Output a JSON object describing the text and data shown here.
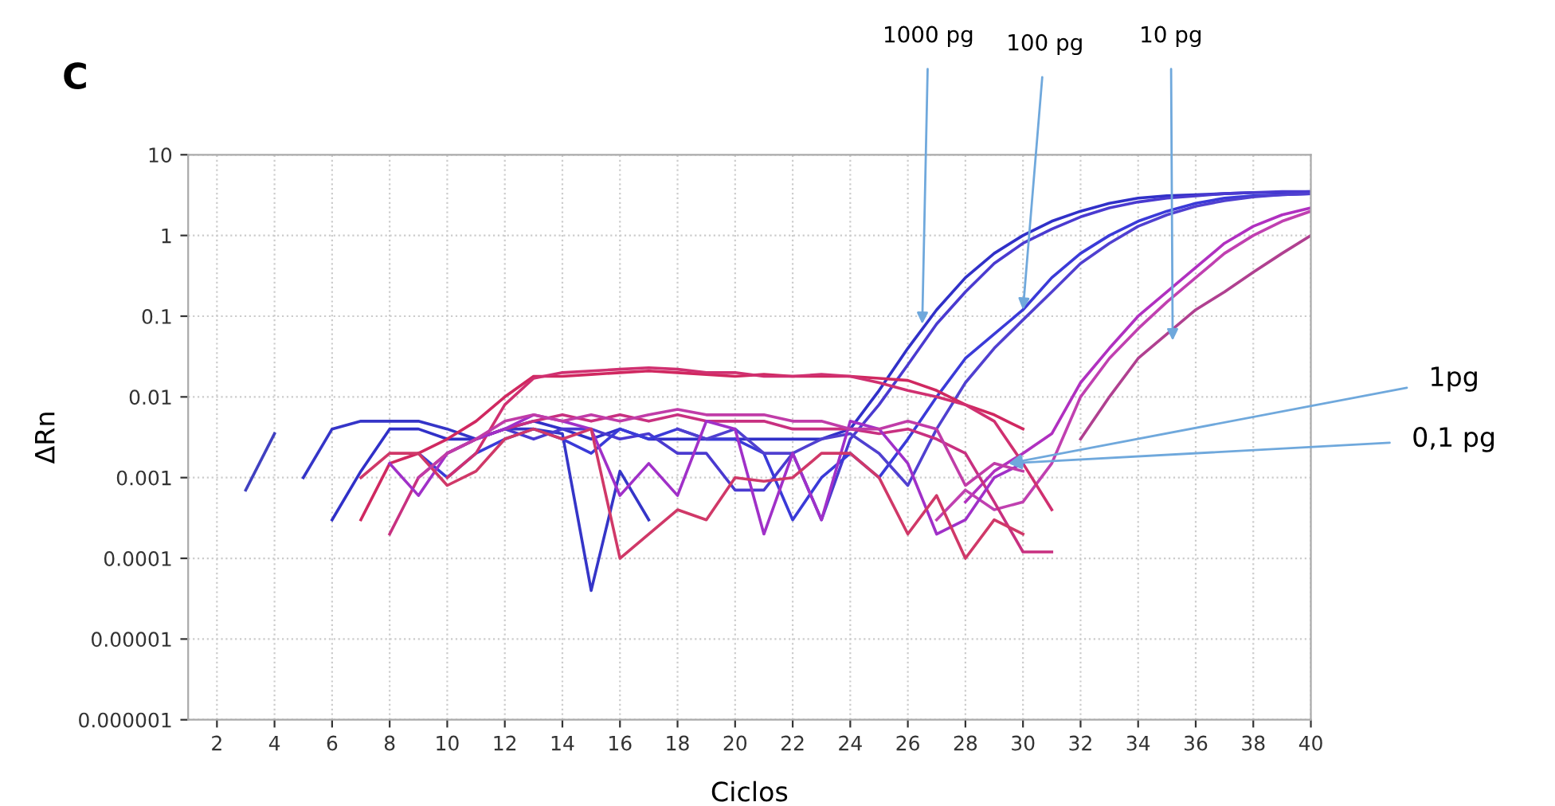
{
  "chart_data": {
    "type": "line",
    "xlabel": "Ciclos",
    "ylabel": "ΔRn",
    "log": "y",
    "grid": true,
    "xlim": [
      1,
      40
    ],
    "xticks": [
      2,
      4,
      6,
      8,
      10,
      12,
      14,
      16,
      18,
      20,
      22,
      24,
      26,
      28,
      30,
      32,
      34,
      36,
      38,
      40
    ],
    "ylim": [
      1e-06,
      10
    ],
    "yticks": [
      {
        "value": 1e-06,
        "label": "0.000001"
      },
      {
        "value": 1e-05,
        "label": "0.00001"
      },
      {
        "value": 0.0001,
        "label": "0.0001"
      },
      {
        "value": 0.001,
        "label": "0.001"
      },
      {
        "value": 0.01,
        "label": "0.01"
      },
      {
        "value": 0.1,
        "label": "0.1"
      },
      {
        "value": 1,
        "label": "1"
      },
      {
        "value": 10,
        "label": "10"
      }
    ],
    "annotations": [
      "C",
      {
        "text": "1000 pg",
        "x": 26.5,
        "y": 0.08
      },
      {
        "text": "100 pg",
        "x": 30,
        "y": 0.12
      },
      {
        "text": "10 pg",
        "x": 35.2,
        "y": 0.05
      },
      {
        "text": "1pg",
        "x": 29.5,
        "y": 0.0015
      },
      {
        "text": "0,1 pg",
        "x": 29.5,
        "y": 0.0015
      }
    ],
    "series": [
      {
        "color": "#4040c0",
        "x": [
          3,
          4
        ],
        "values": [
          0.0007,
          0.0035
        ]
      },
      {
        "color": "#3535c8",
        "x": [
          5,
          6,
          7,
          8,
          9,
          10,
          11,
          12,
          13,
          14,
          15,
          16,
          17
        ],
        "values": [
          0.001,
          0.004,
          0.005,
          0.005,
          0.005,
          0.004,
          0.003,
          0.004,
          0.004,
          0.0035,
          4e-05,
          0.0012,
          0.0003
        ]
      },
      {
        "color": "#3030c8",
        "x": [
          6,
          7,
          8,
          9,
          10,
          11,
          12,
          13,
          14,
          15,
          16,
          17,
          18,
          19,
          20,
          21,
          22,
          23,
          24,
          25,
          26,
          27,
          28,
          29,
          30,
          31,
          32,
          33,
          34,
          35,
          36,
          37,
          38,
          39,
          40
        ],
        "values": [
          0.0003,
          0.0012,
          0.004,
          0.004,
          0.003,
          0.003,
          0.004,
          0.005,
          0.004,
          0.003,
          0.004,
          0.003,
          0.003,
          0.003,
          0.003,
          0.003,
          0.003,
          0.003,
          0.004,
          0.012,
          0.04,
          0.12,
          0.3,
          0.6,
          1.0,
          1.5,
          2.0,
          2.5,
          2.9,
          3.1,
          3.2,
          3.3,
          3.4,
          3.4,
          3.5
        ]
      },
      {
        "color": "#4a3ad0",
        "x": [
          10,
          11,
          12,
          13,
          14,
          15,
          16,
          17,
          18,
          19,
          20,
          21,
          22,
          23,
          24,
          25,
          26,
          27,
          28,
          29,
          30,
          31,
          32,
          33,
          34,
          35,
          36,
          37,
          38,
          39,
          40
        ],
        "values": [
          0.002,
          0.003,
          0.004,
          0.003,
          0.004,
          0.004,
          0.003,
          0.0035,
          0.002,
          0.002,
          0.0007,
          0.0007,
          0.002,
          0.0003,
          0.003,
          0.008,
          0.025,
          0.08,
          0.2,
          0.45,
          0.8,
          1.2,
          1.7,
          2.2,
          2.6,
          2.9,
          3.1,
          3.3,
          3.4,
          3.5,
          3.5
        ]
      },
      {
        "color": "#3a3ad8",
        "x": [
          9,
          10,
          11,
          12,
          13,
          14,
          15,
          16,
          17,
          18,
          19,
          20,
          21,
          22,
          23,
          24,
          25,
          26,
          27,
          28,
          29,
          30,
          31,
          32,
          33,
          34,
          35,
          36,
          37,
          38,
          39,
          40
        ],
        "values": [
          0.002,
          0.001,
          0.002,
          0.003,
          0.004,
          0.003,
          0.002,
          0.004,
          0.003,
          0.004,
          0.003,
          0.003,
          0.002,
          0.0003,
          0.001,
          0.002,
          0.001,
          0.003,
          0.01,
          0.03,
          0.06,
          0.12,
          0.3,
          0.6,
          1.0,
          1.5,
          2.0,
          2.5,
          2.9,
          3.1,
          3.2,
          3.3
        ]
      },
      {
        "color": "#5040d0",
        "x": [
          18,
          19,
          20,
          21,
          22,
          23,
          24,
          25,
          26,
          27,
          28,
          29,
          30,
          31,
          32,
          33,
          34,
          35,
          36,
          37,
          38,
          39,
          40
        ],
        "values": [
          0.004,
          0.003,
          0.004,
          0.002,
          0.002,
          0.003,
          0.0035,
          0.002,
          0.0008,
          0.004,
          0.015,
          0.04,
          0.09,
          0.2,
          0.45,
          0.8,
          1.3,
          1.8,
          2.3,
          2.7,
          3.0,
          3.2,
          3.3
        ]
      },
      {
        "color": "#b030c0",
        "x": [
          28,
          29,
          30,
          31,
          32,
          33,
          34,
          35,
          36,
          37,
          38,
          39,
          40
        ],
        "values": [
          0.0005,
          0.0012,
          0.002,
          0.0035,
          0.015,
          0.04,
          0.1,
          0.2,
          0.4,
          0.8,
          1.3,
          1.8,
          2.2
        ]
      },
      {
        "color": "#c040b0",
        "x": [
          27,
          28,
          29,
          30,
          31,
          32,
          33,
          34,
          35,
          36,
          37,
          38,
          39,
          40
        ],
        "values": [
          0.0003,
          0.0007,
          0.0004,
          0.0005,
          0.0015,
          0.01,
          0.03,
          0.07,
          0.15,
          0.3,
          0.6,
          1.0,
          1.5,
          2.0
        ]
      },
      {
        "color": "#b04090",
        "x": [
          32,
          33,
          34,
          35,
          36,
          37,
          38,
          39,
          40
        ],
        "values": [
          0.003,
          0.01,
          0.03,
          0.06,
          0.12,
          0.2,
          0.35,
          0.6,
          1.0
        ]
      },
      {
        "color": "#d02860",
        "x": [
          7,
          8,
          9,
          10,
          11,
          12,
          13,
          14,
          15,
          16,
          17,
          18,
          19,
          20,
          21,
          22,
          23,
          24,
          25,
          26,
          27,
          28,
          29,
          30
        ],
        "values": [
          0.0003,
          0.0015,
          0.002,
          0.003,
          0.005,
          0.01,
          0.018,
          0.018,
          0.019,
          0.02,
          0.021,
          0.02,
          0.019,
          0.018,
          0.019,
          0.018,
          0.018,
          0.018,
          0.017,
          0.016,
          0.012,
          0.008,
          0.006,
          0.004
        ]
      },
      {
        "color": "#d03070",
        "x": [
          10,
          11,
          12,
          13,
          14,
          15,
          16,
          17,
          18,
          19,
          20,
          21,
          22,
          23,
          24,
          25,
          26,
          27,
          28,
          29,
          30,
          31
        ],
        "values": [
          0.001,
          0.002,
          0.008,
          0.017,
          0.02,
          0.021,
          0.022,
          0.023,
          0.022,
          0.02,
          0.02,
          0.018,
          0.018,
          0.019,
          0.018,
          0.015,
          0.012,
          0.01,
          0.008,
          0.005,
          0.0015,
          0.0004
        ]
      },
      {
        "color": "#c83080",
        "x": [
          8,
          9,
          10,
          11,
          12,
          13,
          14,
          15,
          16,
          17,
          18,
          19,
          20,
          21,
          22,
          23,
          24,
          25,
          26,
          27,
          28,
          29,
          30,
          31
        ],
        "values": [
          0.0002,
          0.001,
          0.002,
          0.003,
          0.004,
          0.005,
          0.006,
          0.005,
          0.006,
          0.005,
          0.006,
          0.005,
          0.005,
          0.005,
          0.004,
          0.004,
          0.004,
          0.0035,
          0.004,
          0.003,
          0.002,
          0.0005,
          0.00012,
          0.00012
        ]
      },
      {
        "color": "#a030c8",
        "x": [
          8,
          9,
          10,
          11,
          12,
          13,
          14,
          15,
          16,
          17,
          18,
          19,
          20,
          21,
          22,
          23,
          24,
          25,
          26,
          27,
          28,
          29,
          30
        ],
        "values": [
          0.0015,
          0.0006,
          0.002,
          0.003,
          0.004,
          0.006,
          0.005,
          0.004,
          0.0006,
          0.0015,
          0.0006,
          0.005,
          0.004,
          0.0002,
          0.002,
          0.0003,
          0.005,
          0.004,
          0.0015,
          0.0002,
          0.0003,
          0.001,
          0.0015
        ]
      },
      {
        "color": "#d03868",
        "x": [
          7,
          8,
          9,
          10,
          11,
          12,
          13,
          14,
          15,
          16,
          17,
          18,
          19,
          20,
          21,
          22,
          23,
          24,
          25,
          26,
          27,
          28,
          29,
          30
        ],
        "values": [
          0.001,
          0.002,
          0.002,
          0.0008,
          0.0012,
          0.003,
          0.004,
          0.003,
          0.004,
          0.0001,
          0.0002,
          0.0004,
          0.0003,
          0.001,
          0.0009,
          0.001,
          0.002,
          0.002,
          0.001,
          0.0002,
          0.0006,
          0.0001,
          0.0003,
          0.0002
        ]
      },
      {
        "color": "#c03ca8",
        "x": [
          9,
          10,
          11,
          12,
          13,
          14,
          15,
          16,
          17,
          18,
          19,
          20,
          21,
          22,
          23,
          24,
          25,
          26,
          27,
          28,
          29,
          30
        ],
        "values": [
          0.001,
          0.002,
          0.003,
          0.005,
          0.006,
          0.005,
          0.006,
          0.005,
          0.006,
          0.007,
          0.006,
          0.006,
          0.006,
          0.005,
          0.005,
          0.004,
          0.004,
          0.005,
          0.004,
          0.0008,
          0.0015,
          0.0012
        ]
      }
    ]
  }
}
